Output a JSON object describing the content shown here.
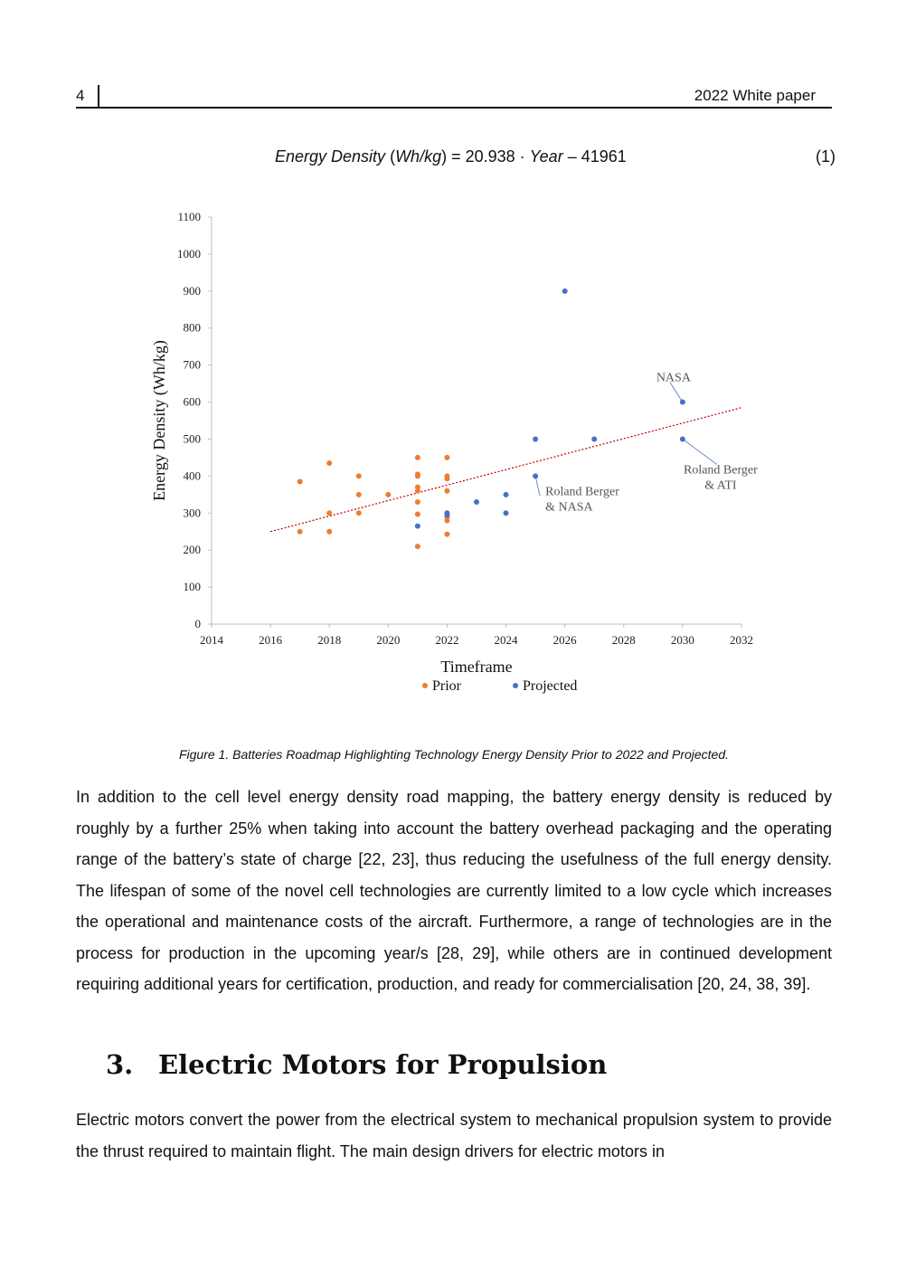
{
  "header": {
    "page_number": "4",
    "running_title": "2022 White paper"
  },
  "equation": {
    "lhs_name": "Energy Density",
    "lhs_unit": "Wh/kg",
    "rhs_const": "20.938",
    "variable": "Year",
    "intercept": "41961",
    "number": "(1)"
  },
  "chart_data": {
    "type": "scatter",
    "xlabel": "Timeframe",
    "ylabel": "Energy Density (Wh/kg)",
    "xlim": [
      2014,
      2032
    ],
    "ylim": [
      0,
      1100
    ],
    "xticks": [
      2014,
      2016,
      2018,
      2020,
      2022,
      2024,
      2026,
      2028,
      2030,
      2032
    ],
    "yticks": [
      0,
      100,
      200,
      300,
      400,
      500,
      600,
      700,
      800,
      900,
      1000,
      1100
    ],
    "legend_position": "bottom",
    "grid": false,
    "series": [
      {
        "name": "Prior",
        "color": "#ed7d31",
        "points": [
          [
            2017,
            385
          ],
          [
            2017,
            250
          ],
          [
            2018,
            435
          ],
          [
            2018,
            300
          ],
          [
            2018,
            250
          ],
          [
            2019,
            400
          ],
          [
            2019,
            350
          ],
          [
            2019,
            300
          ],
          [
            2020,
            350
          ],
          [
            2021,
            450
          ],
          [
            2021,
            405
          ],
          [
            2021,
            400
          ],
          [
            2021,
            370
          ],
          [
            2021,
            360
          ],
          [
            2021,
            330
          ],
          [
            2021,
            297
          ],
          [
            2021,
            210
          ],
          [
            2022,
            450
          ],
          [
            2022,
            400
          ],
          [
            2022,
            393
          ],
          [
            2022,
            360
          ],
          [
            2022,
            290
          ],
          [
            2022,
            280
          ],
          [
            2022,
            243
          ]
        ]
      },
      {
        "name": "Projected",
        "color": "#4472c4",
        "points": [
          [
            2021,
            265
          ],
          [
            2022,
            300
          ],
          [
            2022,
            295
          ],
          [
            2023,
            330
          ],
          [
            2024,
            350
          ],
          [
            2024,
            300
          ],
          [
            2025,
            500
          ],
          [
            2025,
            400
          ],
          [
            2026,
            900
          ],
          [
            2027,
            500
          ],
          [
            2030,
            600
          ],
          [
            2030,
            500
          ]
        ]
      }
    ],
    "trendline": {
      "color": "#c00000",
      "x": [
        2016,
        2032
      ],
      "y": [
        250,
        585
      ]
    },
    "annotations": [
      {
        "text": [
          "NASA"
        ],
        "x": 2030,
        "y": 600
      },
      {
        "text": [
          "Roland Berger",
          "& ATI"
        ],
        "x": 2030,
        "y": 500
      },
      {
        "text": [
          "Roland Berger",
          "& NASA"
        ],
        "x": 2025,
        "y": 400
      }
    ]
  },
  "caption": "Figure 1. Batteries Roadmap Highlighting Technology Energy Density Prior to 2022 and Projected.",
  "paragraph1": "In addition to the cell level energy density road mapping, the battery energy density is reduced by roughly by a further 25% when taking into account the battery overhead packaging and the operating range of the battery’s state of charge [22, 23], thus reducing the usefulness of the full energy density. The lifespan of some of the novel cell technologies are currently limited to a low cycle which increases the operational and maintenance costs of the aircraft. Furthermore, a range of technologies are in the process for production in the upcoming year/s [28, 29], while others are in continued development requiring additional years for certification, production, and ready for commercialisation [20, 24, 38, 39].",
  "section": {
    "number": "3.",
    "title": "Electric Motors for Propulsion"
  },
  "paragraph2": "Electric motors convert the power from the electrical system to mechanical propulsion system to provide the thrust required to maintain flight. The main design drivers for electric motors in"
}
